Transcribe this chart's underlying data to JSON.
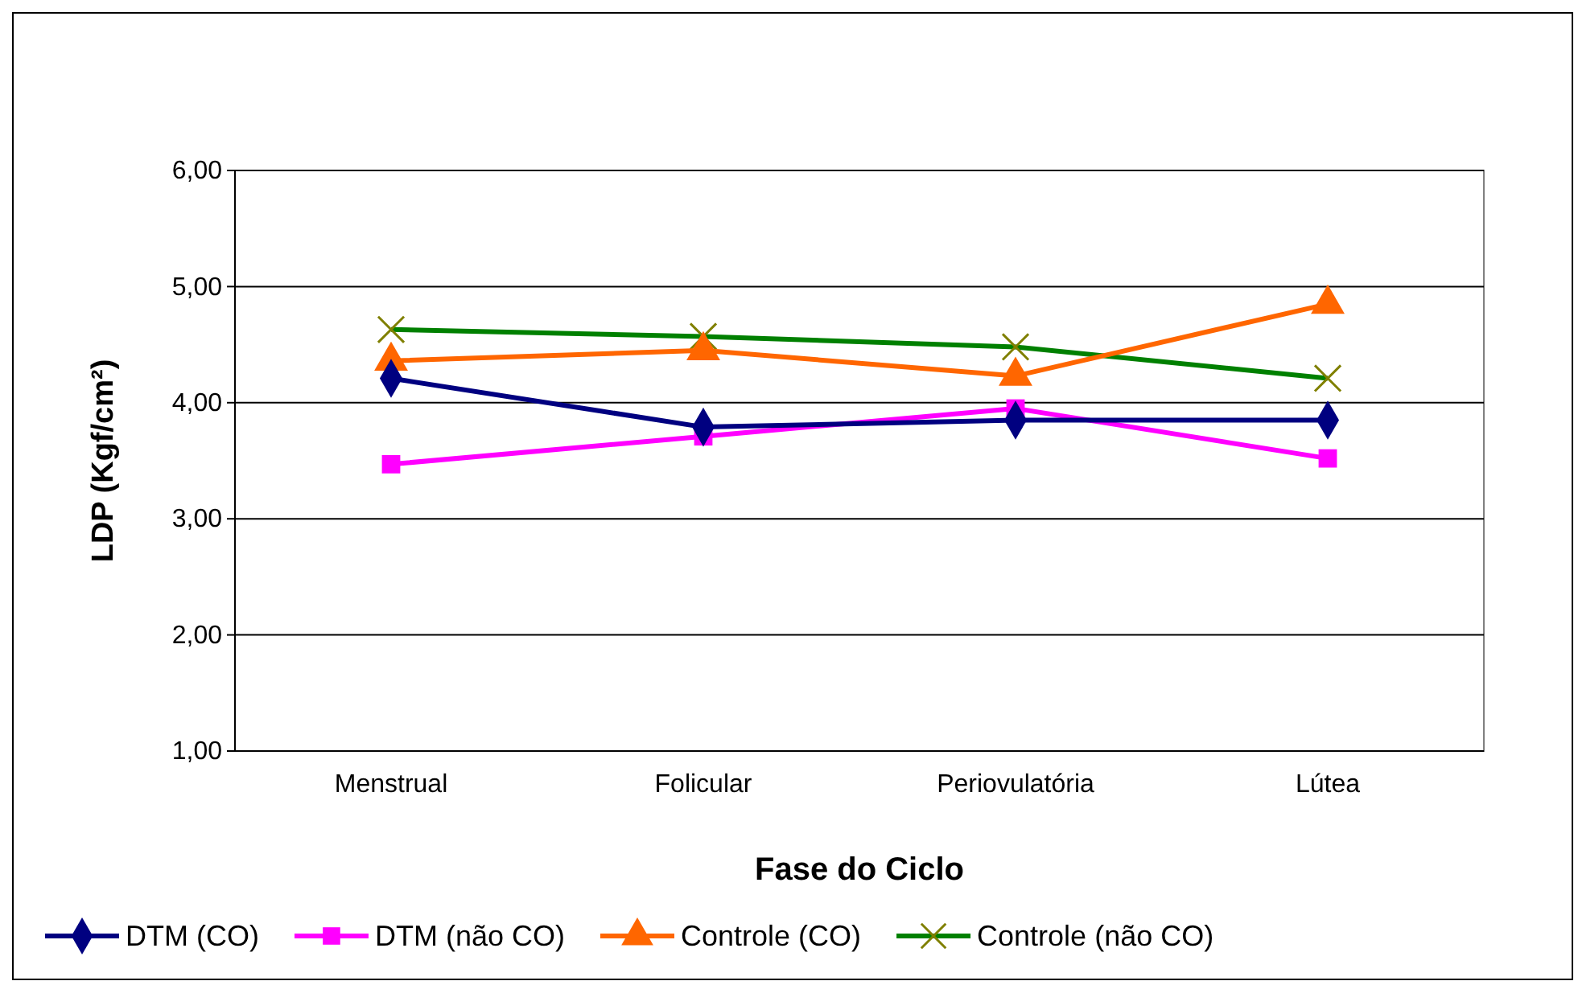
{
  "chart_data": {
    "type": "line",
    "xlabel": "Fase do Ciclo",
    "ylabel": "LDP (Kgf/cm²)",
    "categories": [
      "Menstrual",
      "Folicular",
      "Periovulatória",
      "Lútea"
    ],
    "series": [
      {
        "name": "DTM (CO)",
        "color": "#000080",
        "marker": "diamond",
        "values": [
          4.21,
          3.79,
          3.85,
          3.85
        ]
      },
      {
        "name": "DTM (não CO)",
        "color": "#ff00ff",
        "marker": "square",
        "values": [
          3.47,
          3.71,
          3.95,
          3.52
        ]
      },
      {
        "name": "Controle (CO)",
        "color": "#ff6600",
        "marker": "triangle",
        "values": [
          4.36,
          4.45,
          4.23,
          4.85
        ]
      },
      {
        "name": "Controle (não CO)",
        "color": "#008000",
        "marker": "cross",
        "values": [
          4.63,
          4.57,
          4.48,
          4.21
        ]
      }
    ],
    "ylim": [
      1,
      6
    ],
    "yticks": [
      {
        "value": 1,
        "label": "1,00"
      },
      {
        "value": 2,
        "label": "2,00"
      },
      {
        "value": 3,
        "label": "3,00"
      },
      {
        "value": 4,
        "label": "4,00"
      },
      {
        "value": 5,
        "label": "5,00"
      },
      {
        "value": 6,
        "label": "6,00"
      }
    ],
    "grid": "y",
    "legend": "bottom"
  }
}
